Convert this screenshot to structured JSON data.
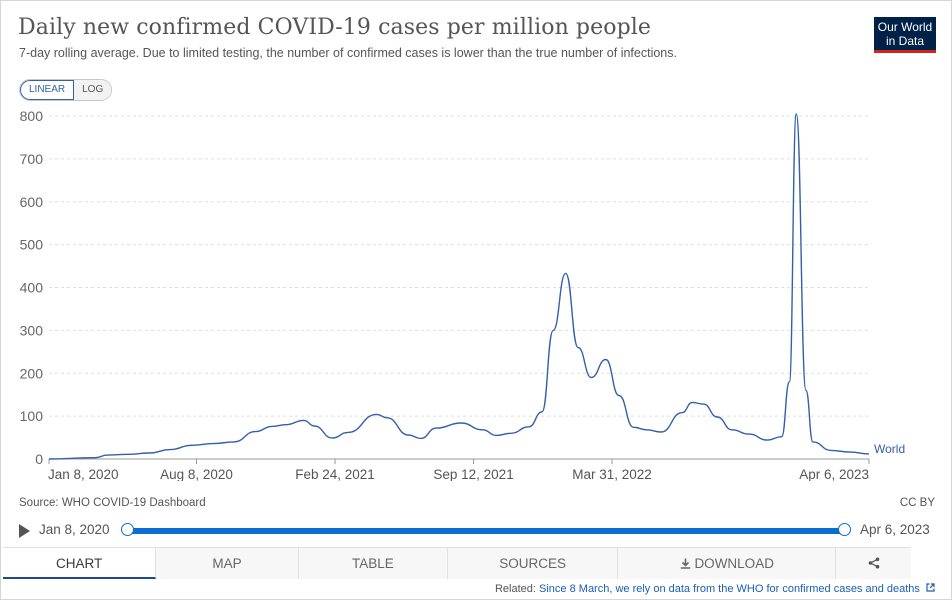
{
  "header": {
    "title": "Daily new confirmed COVID-19 cases per million people",
    "subtitle": "7-day rolling average. Due to limited testing, the number of confirmed cases is lower than the true number of infections.",
    "logo_line1": "Our World",
    "logo_line2": "in Data"
  },
  "scale_toggle": {
    "linear_label": "LINEAR",
    "log_label": "LOG",
    "selected": "LINEAR"
  },
  "chart_data": {
    "type": "line",
    "title": "Daily new confirmed COVID-19 cases per million people",
    "ylim": [
      0,
      800
    ],
    "yticks": [
      0,
      100,
      200,
      300,
      400,
      500,
      600,
      700,
      800
    ],
    "grid": "horizontal dashed",
    "xtick_labels": [
      "Jan 8, 2020",
      "Aug 8, 2020",
      "Feb 24, 2021",
      "Sep 12, 2021",
      "Mar 31, 2022",
      "Apr 6, 2023"
    ],
    "line_color": "#3360a9",
    "series": [
      {
        "name": "World",
        "points": [
          [
            "2020-01-08",
            0
          ],
          [
            "2020-03-15",
            3
          ],
          [
            "2020-04-01",
            9
          ],
          [
            "2020-05-01",
            11
          ],
          [
            "2020-06-01",
            14
          ],
          [
            "2020-07-01",
            22
          ],
          [
            "2020-08-01",
            32
          ],
          [
            "2020-09-01",
            36
          ],
          [
            "2020-10-01",
            40
          ],
          [
            "2020-11-01",
            64
          ],
          [
            "2020-11-25",
            76
          ],
          [
            "2020-12-15",
            80
          ],
          [
            "2021-01-10",
            90
          ],
          [
            "2021-01-25",
            77
          ],
          [
            "2021-02-20",
            49
          ],
          [
            "2021-03-15",
            62
          ],
          [
            "2021-04-25",
            104
          ],
          [
            "2021-05-10",
            96
          ],
          [
            "2021-06-10",
            56
          ],
          [
            "2021-06-28",
            48
          ],
          [
            "2021-07-20",
            72
          ],
          [
            "2021-08-25",
            84
          ],
          [
            "2021-09-25",
            68
          ],
          [
            "2021-10-15",
            55
          ],
          [
            "2021-11-05",
            60
          ],
          [
            "2021-12-01",
            75
          ],
          [
            "2021-12-20",
            110
          ],
          [
            "2022-01-05",
            300
          ],
          [
            "2022-01-23",
            433
          ],
          [
            "2022-02-10",
            260
          ],
          [
            "2022-03-01",
            190
          ],
          [
            "2022-03-22",
            232
          ],
          [
            "2022-04-10",
            148
          ],
          [
            "2022-05-01",
            74
          ],
          [
            "2022-05-20",
            68
          ],
          [
            "2022-06-10",
            63
          ],
          [
            "2022-07-10",
            108
          ],
          [
            "2022-07-25",
            132
          ],
          [
            "2022-08-10",
            128
          ],
          [
            "2022-08-30",
            98
          ],
          [
            "2022-09-20",
            68
          ],
          [
            "2022-10-15",
            58
          ],
          [
            "2022-11-10",
            44
          ],
          [
            "2022-12-01",
            52
          ],
          [
            "2022-12-12",
            180
          ],
          [
            "2022-12-22",
            805
          ],
          [
            "2023-01-05",
            160
          ],
          [
            "2023-01-15",
            40
          ],
          [
            "2023-02-10",
            20
          ],
          [
            "2023-03-10",
            16
          ],
          [
            "2023-04-06",
            12
          ]
        ]
      }
    ]
  },
  "source_text": "Source: WHO COVID-19 Dashboard",
  "license_text": "CC BY",
  "timeline": {
    "start": "Jan 8, 2020",
    "end": "Apr 6, 2023"
  },
  "tabs": [
    "CHART",
    "MAP",
    "TABLE",
    "SOURCES",
    "DOWNLOAD"
  ],
  "active_tab": "CHART",
  "related": {
    "prefix": "Related:",
    "link_text": "Since 8 March, we rely on data from the WHO for confirmed cases and deaths"
  },
  "icons": {
    "download": "download-icon",
    "share": "share-icon",
    "play": "play-icon",
    "external_link": "external-link-icon"
  }
}
